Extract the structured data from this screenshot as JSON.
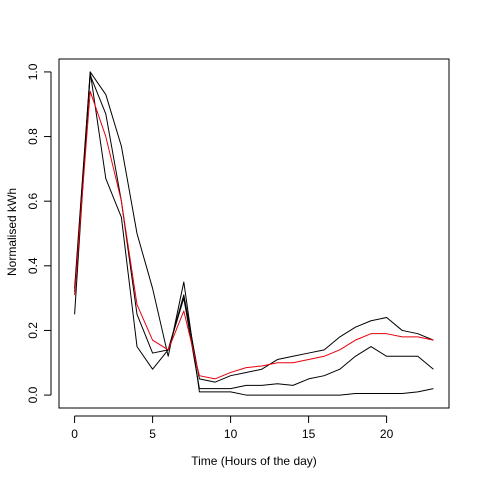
{
  "chart_data": {
    "type": "line",
    "title": "",
    "xlabel": "Time (Hours of the day)",
    "ylabel": "Normalised kWh",
    "xlim": [
      -1,
      24
    ],
    "ylim": [
      -0.04,
      1.04
    ],
    "xticks": [
      0,
      5,
      10,
      15,
      20
    ],
    "yticks": [
      0.0,
      0.2,
      0.4,
      0.6,
      0.8,
      1.0
    ],
    "grid": false,
    "legend": "none",
    "x": [
      0,
      1,
      2,
      3,
      4,
      5,
      6,
      7,
      8,
      9,
      10,
      11,
      12,
      13,
      14,
      15,
      16,
      17,
      18,
      19,
      20,
      21,
      22,
      23
    ],
    "series": [
      {
        "color": "#000000",
        "values": [
          0.25,
          1.0,
          0.93,
          0.77,
          0.5,
          0.33,
          0.12,
          0.35,
          0.01,
          0.01,
          0.01,
          0.0,
          0.0,
          0.0,
          0.0,
          0.0,
          0.0,
          0.0,
          0.005,
          0.005,
          0.005,
          0.005,
          0.01,
          0.02
        ]
      },
      {
        "color": "#000000",
        "values": [
          0.33,
          1.0,
          0.67,
          0.55,
          0.15,
          0.08,
          0.14,
          0.31,
          0.05,
          0.04,
          0.06,
          0.07,
          0.08,
          0.11,
          0.12,
          0.13,
          0.14,
          0.18,
          0.21,
          0.23,
          0.24,
          0.2,
          0.19,
          0.17
        ]
      },
      {
        "color": "#000000",
        "values": [
          0.32,
          0.99,
          0.87,
          0.6,
          0.25,
          0.13,
          0.14,
          0.3,
          0.02,
          0.02,
          0.02,
          0.03,
          0.03,
          0.035,
          0.03,
          0.05,
          0.06,
          0.08,
          0.12,
          0.15,
          0.12,
          0.12,
          0.12,
          0.08
        ]
      },
      {
        "color": "#e8000b",
        "values": [
          0.31,
          0.94,
          0.8,
          0.6,
          0.28,
          0.17,
          0.14,
          0.26,
          0.06,
          0.05,
          0.07,
          0.085,
          0.09,
          0.1,
          0.1,
          0.11,
          0.12,
          0.14,
          0.17,
          0.19,
          0.19,
          0.18,
          0.18,
          0.17
        ]
      }
    ]
  }
}
